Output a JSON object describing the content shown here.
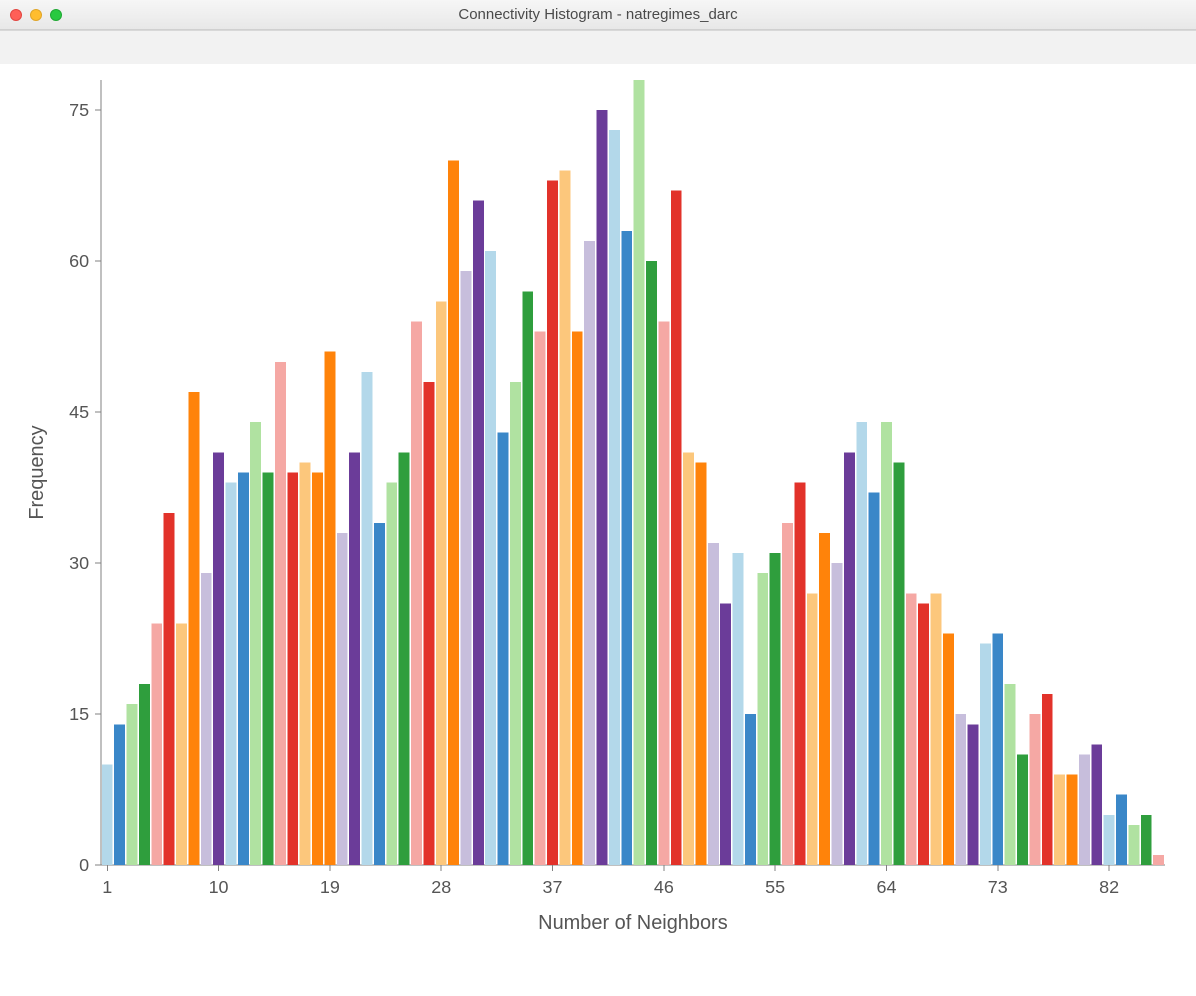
{
  "window": {
    "title": "Connectivity Histogram - natregimes_darc"
  },
  "chart": {
    "type": "histogram",
    "xlabel": "Number of Neighbors",
    "ylabel": "Frequency",
    "ylim": [
      0,
      78
    ],
    "ytick_step": 15,
    "xtick_start": 1,
    "xtick_step": 9,
    "xtick_count": 10,
    "background_color": "#ffffff",
    "axis_color": "#808080",
    "label_color": "#555555",
    "label_fontsize": 20,
    "tick_fontsize": 18,
    "bar_gap_ratio": 0.12,
    "palette": {
      "lightblue": "#b3d8ea",
      "blue": "#3a87c8",
      "lightgreen": "#b0e2a1",
      "green": "#2f9e3d",
      "pink": "#f5a8a4",
      "red": "#e2322a",
      "lightorange": "#fcc77c",
      "orange": "#ff830a",
      "lavender": "#c7bedc",
      "purple": "#6b3c99"
    },
    "bars": [
      {
        "x": 1,
        "y": 10,
        "c": "lightblue"
      },
      {
        "x": 2,
        "y": 14,
        "c": "blue"
      },
      {
        "x": 3,
        "y": 16,
        "c": "lightgreen"
      },
      {
        "x": 4,
        "y": 18,
        "c": "green"
      },
      {
        "x": 5,
        "y": 24,
        "c": "pink"
      },
      {
        "x": 6,
        "y": 35,
        "c": "red"
      },
      {
        "x": 7,
        "y": 24,
        "c": "lightorange"
      },
      {
        "x": 8,
        "y": 47,
        "c": "orange"
      },
      {
        "x": 9,
        "y": 29,
        "c": "lavender"
      },
      {
        "x": 10,
        "y": 41,
        "c": "purple"
      },
      {
        "x": 11,
        "y": 38,
        "c": "lightblue"
      },
      {
        "x": 12,
        "y": 39,
        "c": "blue"
      },
      {
        "x": 13,
        "y": 44,
        "c": "lightgreen"
      },
      {
        "x": 14,
        "y": 39,
        "c": "green"
      },
      {
        "x": 15,
        "y": 50,
        "c": "pink"
      },
      {
        "x": 16,
        "y": 39,
        "c": "red"
      },
      {
        "x": 17,
        "y": 40,
        "c": "lightorange"
      },
      {
        "x": 18,
        "y": 39,
        "c": "orange"
      },
      {
        "x": 19,
        "y": 51,
        "c": "orange"
      },
      {
        "x": 20,
        "y": 33,
        "c": "lavender"
      },
      {
        "x": 21,
        "y": 41,
        "c": "purple"
      },
      {
        "x": 22,
        "y": 49,
        "c": "lightblue"
      },
      {
        "x": 23,
        "y": 34,
        "c": "blue"
      },
      {
        "x": 24,
        "y": 38,
        "c": "lightgreen"
      },
      {
        "x": 25,
        "y": 41,
        "c": "green"
      },
      {
        "x": 26,
        "y": 54,
        "c": "pink"
      },
      {
        "x": 27,
        "y": 48,
        "c": "red"
      },
      {
        "x": 28,
        "y": 56,
        "c": "lightorange"
      },
      {
        "x": 29,
        "y": 70,
        "c": "orange"
      },
      {
        "x": 30,
        "y": 59,
        "c": "lavender"
      },
      {
        "x": 31,
        "y": 66,
        "c": "purple"
      },
      {
        "x": 32,
        "y": 61,
        "c": "lightblue"
      },
      {
        "x": 33,
        "y": 43,
        "c": "blue"
      },
      {
        "x": 34,
        "y": 48,
        "c": "lightgreen"
      },
      {
        "x": 35,
        "y": 57,
        "c": "green"
      },
      {
        "x": 36,
        "y": 53,
        "c": "pink"
      },
      {
        "x": 37,
        "y": 68,
        "c": "red"
      },
      {
        "x": 38,
        "y": 69,
        "c": "lightorange"
      },
      {
        "x": 39,
        "y": 53,
        "c": "orange"
      },
      {
        "x": 40,
        "y": 62,
        "c": "lavender"
      },
      {
        "x": 41,
        "y": 75,
        "c": "purple"
      },
      {
        "x": 42,
        "y": 73,
        "c": "lightblue"
      },
      {
        "x": 43,
        "y": 63,
        "c": "blue"
      },
      {
        "x": 44,
        "y": 78,
        "c": "lightgreen"
      },
      {
        "x": 45,
        "y": 60,
        "c": "green"
      },
      {
        "x": 46,
        "y": 54,
        "c": "pink"
      },
      {
        "x": 47,
        "y": 67,
        "c": "red"
      },
      {
        "x": 48,
        "y": 41,
        "c": "lightorange"
      },
      {
        "x": 49,
        "y": 40,
        "c": "orange"
      },
      {
        "x": 50,
        "y": 32,
        "c": "lavender"
      },
      {
        "x": 51,
        "y": 26,
        "c": "purple"
      },
      {
        "x": 52,
        "y": 31,
        "c": "lightblue"
      },
      {
        "x": 53,
        "y": 15,
        "c": "blue"
      },
      {
        "x": 54,
        "y": 29,
        "c": "lightgreen"
      },
      {
        "x": 55,
        "y": 31,
        "c": "green"
      },
      {
        "x": 56,
        "y": 34,
        "c": "pink"
      },
      {
        "x": 57,
        "y": 38,
        "c": "red"
      },
      {
        "x": 58,
        "y": 27,
        "c": "lightorange"
      },
      {
        "x": 59,
        "y": 33,
        "c": "orange"
      },
      {
        "x": 60,
        "y": 30,
        "c": "lavender"
      },
      {
        "x": 61,
        "y": 41,
        "c": "purple"
      },
      {
        "x": 62,
        "y": 44,
        "c": "lightblue"
      },
      {
        "x": 63,
        "y": 37,
        "c": "blue"
      },
      {
        "x": 64,
        "y": 44,
        "c": "lightgreen"
      },
      {
        "x": 65,
        "y": 40,
        "c": "green"
      },
      {
        "x": 66,
        "y": 27,
        "c": "pink"
      },
      {
        "x": 67,
        "y": 26,
        "c": "red"
      },
      {
        "x": 68,
        "y": 27,
        "c": "lightorange"
      },
      {
        "x": 69,
        "y": 23,
        "c": "orange"
      },
      {
        "x": 70,
        "y": 15,
        "c": "lavender"
      },
      {
        "x": 71,
        "y": 14,
        "c": "purple"
      },
      {
        "x": 72,
        "y": 22,
        "c": "lightblue"
      },
      {
        "x": 73,
        "y": 23,
        "c": "blue"
      },
      {
        "x": 74,
        "y": 18,
        "c": "lightgreen"
      },
      {
        "x": 75,
        "y": 11,
        "c": "green"
      },
      {
        "x": 76,
        "y": 15,
        "c": "pink"
      },
      {
        "x": 77,
        "y": 17,
        "c": "red"
      },
      {
        "x": 78,
        "y": 9,
        "c": "lightorange"
      },
      {
        "x": 79,
        "y": 9,
        "c": "orange"
      },
      {
        "x": 80,
        "y": 11,
        "c": "lavender"
      },
      {
        "x": 81,
        "y": 12,
        "c": "purple"
      },
      {
        "x": 82,
        "y": 5,
        "c": "lightblue"
      },
      {
        "x": 83,
        "y": 7,
        "c": "blue"
      },
      {
        "x": 84,
        "y": 4,
        "c": "lightgreen"
      },
      {
        "x": 85,
        "y": 5,
        "c": "green"
      },
      {
        "x": 86,
        "y": 1,
        "c": "pink"
      }
    ]
  }
}
